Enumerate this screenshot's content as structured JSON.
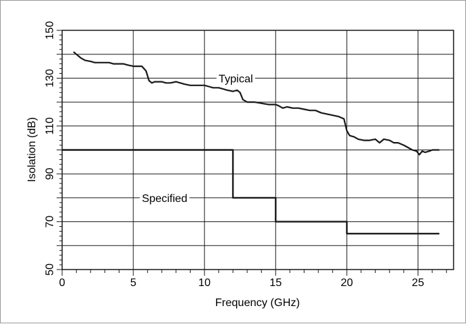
{
  "chart_data": {
    "type": "line",
    "xlabel": "Frequency (GHz)",
    "ylabel": "Isolation (dB)",
    "xlim": [
      0,
      27.5
    ],
    "ylim": [
      50,
      150
    ],
    "x_ticks": [
      "0",
      "5",
      "10",
      "15",
      "20",
      "25"
    ],
    "x_tick_values": [
      0,
      5,
      10,
      15,
      20,
      25
    ],
    "y_ticks": [
      "50",
      "70",
      "90",
      "110",
      "130",
      "150"
    ],
    "y_tick_values": [
      50,
      70,
      90,
      110,
      130,
      150
    ],
    "y_grid_values": [
      50,
      60,
      70,
      80,
      90,
      100,
      110,
      120,
      130,
      140,
      150
    ],
    "x_grid_values": [
      0,
      5,
      10,
      15,
      20,
      25
    ],
    "grid": true,
    "series": [
      {
        "name": "Typical",
        "color": "#1a1a1a",
        "x": [
          0.8,
          1.0,
          1.3,
          1.6,
          2.0,
          2.3,
          2.6,
          3.0,
          3.3,
          3.6,
          4.0,
          4.3,
          4.6,
          5.0,
          5.3,
          5.6,
          5.9,
          6.1,
          6.3,
          6.5,
          6.7,
          7.0,
          7.3,
          7.6,
          8.0,
          8.3,
          8.6,
          9.0,
          9.3,
          9.6,
          10.0,
          10.3,
          10.6,
          11.0,
          11.3,
          11.6,
          12.0,
          12.3,
          12.5,
          12.7,
          13.0,
          13.5,
          14.0,
          14.5,
          15.0,
          15.2,
          15.5,
          15.8,
          16.2,
          16.6,
          17.0,
          17.4,
          17.8,
          18.2,
          18.6,
          19.0,
          19.4,
          19.8,
          20.0,
          20.2,
          20.5,
          20.8,
          21.2,
          21.6,
          22.0,
          22.3,
          22.6,
          23.0,
          23.3,
          23.6,
          24.0,
          24.3,
          24.6,
          24.9,
          25.1,
          25.3,
          25.5,
          25.8,
          26.0,
          26.5
        ],
        "y": [
          141,
          140,
          138.5,
          137.5,
          137,
          136.5,
          136.5,
          136.5,
          136.5,
          136,
          136,
          136,
          135.5,
          135,
          135,
          135,
          133,
          129,
          128,
          128.5,
          128.5,
          128.5,
          128,
          128,
          128.5,
          128,
          127.5,
          127,
          127,
          127,
          127,
          126.5,
          126,
          126,
          125.5,
          125,
          124.5,
          125,
          124,
          121,
          120,
          120,
          119.5,
          119,
          119,
          118.5,
          117.5,
          118,
          117.5,
          117.5,
          117,
          116.5,
          116.5,
          115.5,
          115,
          114.5,
          114,
          113,
          108,
          106,
          105.5,
          104.5,
          104,
          104,
          104.5,
          103,
          104.5,
          104,
          103,
          103,
          102,
          101,
          100,
          99.5,
          98,
          99.5,
          99,
          99.5,
          100,
          100
        ]
      },
      {
        "name": "Specified",
        "color": "#1a1a1a",
        "step": true,
        "x": [
          0,
          12,
          12,
          15,
          15,
          20,
          20,
          26.5
        ],
        "y": [
          100,
          100,
          80,
          80,
          70,
          70,
          65,
          65
        ]
      }
    ],
    "annotations": [
      {
        "text": "Typical",
        "series": 0,
        "x": 12.2,
        "y": 130
      },
      {
        "text": "Specified",
        "series": 1,
        "x": 7.2,
        "y": 80
      }
    ]
  }
}
